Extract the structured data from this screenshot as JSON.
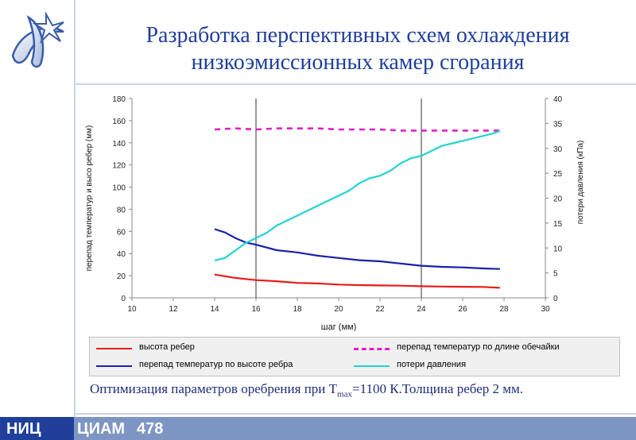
{
  "title_line1": "Разработка перспективных схем охлаждения",
  "title_line2": "низкоэмиссионных камер сгорания",
  "caption": {
    "prefix": "Оптимизация параметров оребрения при T",
    "sub": "max",
    "suffix": "=1100 К.Толщина ребер 2 мм."
  },
  "footer": {
    "org1": "НИЦ",
    "org2": "ЦИАМ",
    "page": "478"
  },
  "colors": {
    "red": "#e81c1c",
    "blue": "#1622a8",
    "magenta": "#e020c8",
    "cyan": "#22d3d3",
    "brand": "#1f3f9a"
  },
  "chart_data": {
    "type": "line",
    "xlabel": "шаг (мм)",
    "ylabel_left": "перепад температур и высо ребер (мм)",
    "ylabel_right": "потери давления (кПа)",
    "xlim": [
      10,
      30
    ],
    "ylim_left": [
      0,
      180
    ],
    "ylim_right": [
      0,
      40
    ],
    "x_ticks": [
      "10",
      "12",
      "14",
      "16",
      "18",
      "20",
      "22",
      "24",
      "26",
      "28",
      "30"
    ],
    "y_left_ticks": [
      "0",
      "20",
      "40",
      "60",
      "80",
      "100",
      "120",
      "140",
      "160",
      "180"
    ],
    "y_right_ticks": [
      "0",
      "5",
      "10",
      "15",
      "20",
      "25",
      "30",
      "35",
      "40"
    ],
    "grid": "vertical at 16 and 24",
    "legend_position": "bottom",
    "series": [
      {
        "name": "высота ребер",
        "axis": "left",
        "color": "#e81c1c",
        "dash": false,
        "x": [
          14,
          14.5,
          15,
          15.5,
          16,
          17,
          18,
          19,
          20,
          21,
          22,
          23,
          24,
          25,
          26,
          27,
          27.8
        ],
        "y": [
          21,
          19.5,
          18,
          17,
          16,
          15,
          13.5,
          13,
          12,
          11.5,
          11.2,
          11,
          10.5,
          10.2,
          10,
          9.8,
          9
        ]
      },
      {
        "name": "перепад температур по длине обечайки",
        "axis": "left",
        "color": "#e020c8",
        "dash": true,
        "x": [
          14,
          15,
          16,
          17,
          18,
          19,
          20,
          21,
          22,
          23,
          24,
          25,
          26,
          27,
          27.8
        ],
        "y": [
          152,
          153,
          152,
          153,
          153,
          153,
          152,
          152,
          152,
          151,
          151,
          151,
          151,
          151,
          151
        ]
      },
      {
        "name": "перепад температур по высоте ребра",
        "axis": "left",
        "color": "#1622a8",
        "dash": false,
        "x": [
          14,
          14.5,
          15,
          15.5,
          16,
          17,
          18,
          19,
          20,
          21,
          22,
          23,
          24,
          25,
          26,
          27,
          27.8
        ],
        "y": [
          62,
          59,
          54,
          50,
          48,
          43,
          41,
          38,
          36,
          34,
          33,
          31,
          29,
          28,
          27.5,
          26.5,
          26
        ]
      },
      {
        "name": "потери давления",
        "axis": "right",
        "color": "#22d3d3",
        "dash": false,
        "x": [
          14,
          14.5,
          15,
          15.5,
          16,
          16.5,
          17,
          17.5,
          18,
          18.5,
          19,
          19.5,
          20,
          20.5,
          21,
          21.5,
          22,
          22.5,
          23,
          23.5,
          24,
          24.5,
          25,
          25.5,
          26,
          26.5,
          27,
          27.5,
          27.8
        ],
        "y": [
          7.5,
          8,
          9.5,
          11,
          12,
          13,
          14.5,
          15.5,
          16.5,
          17.5,
          18.5,
          19.5,
          20.5,
          21.5,
          23,
          24,
          24.5,
          25.5,
          27,
          28,
          28.5,
          29.5,
          30.5,
          31,
          31.5,
          32,
          32.5,
          33,
          33.5
        ]
      }
    ]
  }
}
